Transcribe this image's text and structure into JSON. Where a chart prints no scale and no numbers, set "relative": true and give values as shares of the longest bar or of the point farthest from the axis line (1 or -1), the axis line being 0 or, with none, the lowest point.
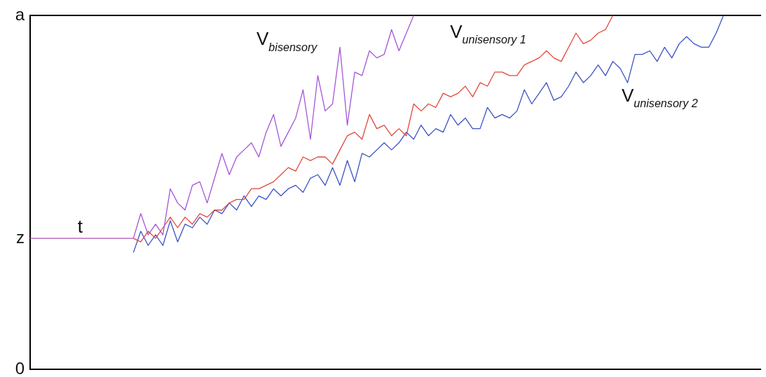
{
  "chart_data": {
    "type": "line",
    "categories": [
      null,
      null,
      null,
      null,
      null,
      null,
      null,
      null,
      null,
      null,
      null,
      null,
      null,
      null,
      null,
      null,
      null,
      null,
      null,
      null,
      null,
      null,
      null,
      null,
      null,
      null,
      null,
      null,
      null,
      null,
      null,
      null,
      null,
      null,
      null,
      null,
      null,
      null,
      null,
      null,
      null,
      null,
      null,
      null,
      null,
      null,
      null,
      null,
      null,
      null,
      null,
      null,
      null,
      null,
      null,
      null,
      null,
      null,
      null,
      null,
      null,
      null,
      null,
      null,
      null,
      null,
      null,
      null,
      null,
      null,
      null,
      null,
      null,
      null,
      null,
      null,
      null,
      null,
      null,
      null,
      null,
      null,
      null,
      null,
      null,
      null,
      null,
      null,
      null,
      null,
      null,
      null,
      null,
      null,
      null,
      null,
      null,
      null,
      null,
      null
    ],
    "relative": true,
    "annotations": [
      "0",
      "z",
      "a"
    ],
    "grid": false,
    "legend": false,
    "marker": "none",
    "line_style": "solid",
    "series": [
      {
        "name": "t",
        "color": "#b04fb8",
        "values": [
          0.37,
          0.37,
          0.37,
          0.37,
          0.37,
          0.37,
          0.37,
          0.37,
          0.37,
          0.37,
          0.37,
          0.37,
          0.37,
          0.37,
          0.37,
          null,
          null,
          null,
          null,
          null,
          null,
          null,
          null,
          null,
          null,
          null,
          null,
          null,
          null,
          null,
          null,
          null,
          null,
          null,
          null,
          null,
          null,
          null,
          null,
          null,
          null,
          null,
          null,
          null,
          null,
          null,
          null,
          null,
          null,
          null,
          null,
          null,
          null,
          null,
          null,
          null,
          null,
          null,
          null,
          null,
          null,
          null,
          null,
          null,
          null,
          null,
          null,
          null,
          null,
          null,
          null,
          null,
          null,
          null,
          null,
          null,
          null,
          null,
          null,
          null,
          null,
          null,
          null,
          null,
          null,
          null,
          null,
          null,
          null,
          null,
          null,
          null,
          null,
          null,
          null,
          null,
          null,
          null,
          null,
          null
        ]
      },
      {
        "name": "V$_{bisensory}$",
        "color": "#a455d8",
        "values": [
          null,
          null,
          null,
          null,
          null,
          null,
          null,
          null,
          null,
          null,
          null,
          null,
          null,
          null,
          0.37,
          0.44,
          0.38,
          0.41,
          0.38,
          0.51,
          0.47,
          0.45,
          0.52,
          0.53,
          0.47,
          0.54,
          0.61,
          0.55,
          0.6,
          0.62,
          0.64,
          0.6,
          0.67,
          0.72,
          0.63,
          0.67,
          0.71,
          0.79,
          0.65,
          0.83,
          0.73,
          0.75,
          0.91,
          0.69,
          0.84,
          0.83,
          0.9,
          0.88,
          0.89,
          0.96,
          0.9,
          0.95,
          1.0,
          null,
          null,
          null,
          null,
          null,
          null,
          null,
          null,
          null,
          null,
          null,
          null,
          null,
          null,
          null,
          null,
          null,
          null,
          null,
          null,
          null,
          null,
          null,
          null,
          null,
          null,
          null,
          null,
          null,
          null,
          null,
          null,
          null,
          null,
          null,
          null,
          null,
          null,
          null,
          null,
          null,
          null,
          null,
          null,
          null,
          null,
          null
        ]
      },
      {
        "name": "V$_{unisensory 1}$",
        "color": "#e0483a",
        "values": [
          null,
          null,
          null,
          null,
          null,
          null,
          null,
          null,
          null,
          null,
          null,
          null,
          null,
          null,
          0.37,
          0.36,
          0.39,
          0.37,
          0.4,
          0.43,
          0.4,
          0.43,
          0.41,
          0.44,
          0.43,
          0.45,
          0.45,
          0.47,
          0.48,
          0.48,
          0.51,
          0.51,
          0.52,
          0.53,
          0.55,
          0.57,
          0.56,
          0.6,
          0.59,
          0.6,
          0.6,
          0.58,
          0.62,
          0.66,
          0.67,
          0.65,
          0.72,
          0.68,
          0.69,
          0.66,
          0.68,
          0.66,
          0.75,
          0.73,
          0.75,
          0.74,
          0.78,
          0.77,
          0.78,
          0.8,
          0.77,
          0.81,
          0.8,
          0.84,
          0.84,
          0.83,
          0.83,
          0.86,
          0.87,
          0.88,
          0.9,
          0.88,
          0.87,
          0.91,
          0.95,
          0.92,
          0.93,
          0.95,
          0.96,
          1.0,
          null,
          null,
          null,
          null,
          null,
          null,
          null,
          null,
          null,
          null,
          null,
          null,
          null,
          null,
          null,
          null,
          null,
          null,
          null,
          null
        ]
      },
      {
        "name": "V$_{unisensory 2}$",
        "color": "#3a52c4",
        "values": [
          null,
          null,
          null,
          null,
          null,
          null,
          null,
          null,
          null,
          null,
          null,
          null,
          null,
          null,
          0.33,
          0.39,
          0.35,
          0.38,
          0.35,
          0.42,
          0.36,
          0.41,
          0.4,
          0.43,
          0.41,
          0.45,
          0.44,
          0.47,
          0.45,
          0.49,
          0.46,
          0.49,
          0.48,
          0.51,
          0.49,
          0.51,
          0.52,
          0.5,
          0.54,
          0.55,
          0.52,
          0.57,
          0.52,
          0.59,
          0.53,
          0.61,
          0.6,
          0.62,
          0.64,
          0.62,
          0.64,
          0.67,
          0.65,
          0.69,
          0.66,
          0.68,
          0.67,
          0.72,
          0.69,
          0.71,
          0.68,
          0.68,
          0.74,
          0.71,
          0.72,
          0.71,
          0.73,
          0.79,
          0.75,
          0.78,
          0.81,
          0.76,
          0.77,
          0.8,
          0.84,
          0.81,
          0.83,
          0.86,
          0.83,
          0.87,
          0.85,
          0.81,
          0.89,
          0.89,
          0.9,
          0.87,
          0.91,
          0.88,
          0.92,
          0.94,
          0.92,
          0.91,
          0.91,
          0.95,
          1.0,
          null,
          null,
          null,
          null,
          null
        ]
      }
    ]
  }
}
